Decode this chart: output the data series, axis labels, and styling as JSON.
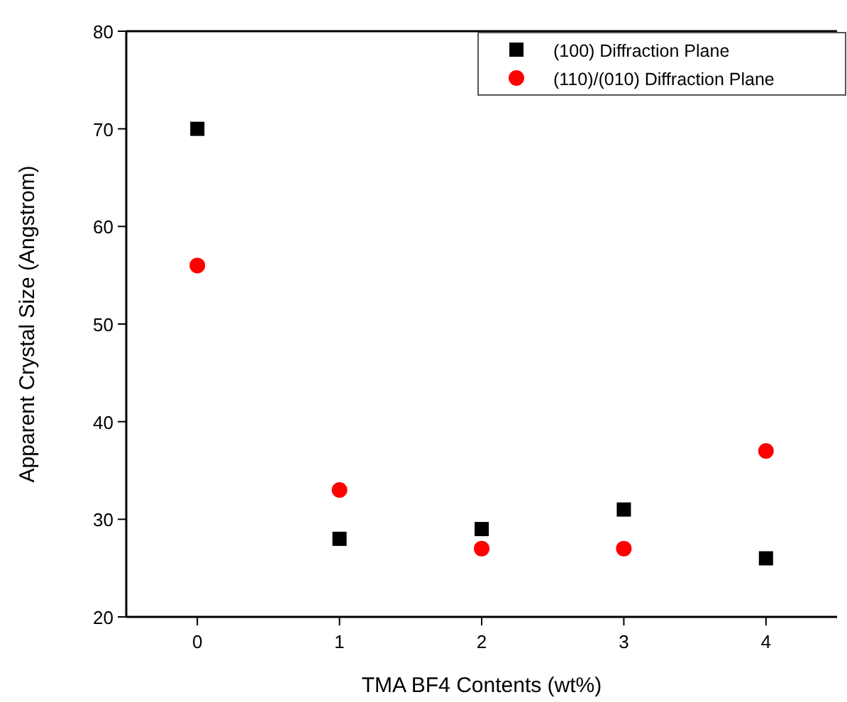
{
  "chart_data": {
    "type": "scatter",
    "xlabel": "TMA BF4 Contents (wt%)",
    "ylabel": "Apparent Crystal Size (Angstrom)",
    "x": [
      0,
      1,
      2,
      3,
      4
    ],
    "xlim": [
      -0.5,
      4.5
    ],
    "xticks": [
      0,
      1,
      2,
      3,
      4
    ],
    "ylim": [
      20,
      80
    ],
    "yticks": [
      20,
      30,
      40,
      50,
      60,
      70,
      80
    ],
    "legend": "top right",
    "grid": false,
    "series": [
      {
        "name": "(100) Diffraction Plane",
        "color": "#000000",
        "marker": "square",
        "values": [
          70,
          28,
          29,
          31,
          26
        ]
      },
      {
        "name": "(110)/(010) Diffraction Plane",
        "color": "#ff0000",
        "marker": "circle",
        "values": [
          56,
          33,
          27,
          27,
          37
        ]
      }
    ]
  }
}
